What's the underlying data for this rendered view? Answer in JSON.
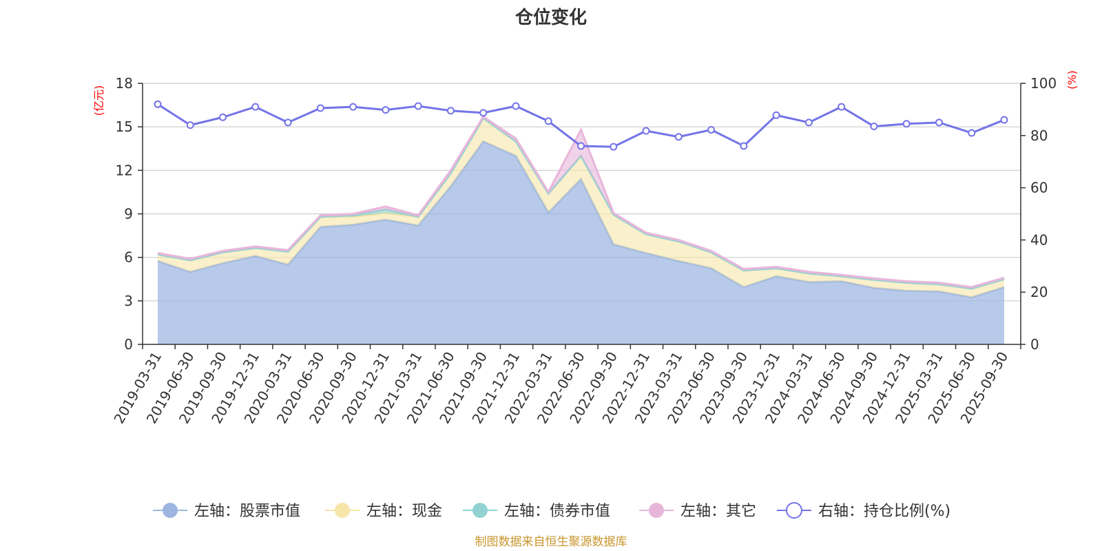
{
  "chart_data": {
    "type": "area",
    "title": "仓位变化",
    "left_axis_unit": "(亿元)",
    "right_axis_unit": "(%)",
    "left_ylim": [
      0,
      18
    ],
    "left_ticks": [
      0,
      3,
      6,
      9,
      12,
      15,
      18
    ],
    "right_ylim": [
      0,
      100
    ],
    "right_ticks": [
      0,
      20,
      40,
      60,
      80,
      100
    ],
    "categories": [
      "2019-03-31",
      "2019-06-30",
      "2019-09-30",
      "2019-12-31",
      "2020-03-31",
      "2020-06-30",
      "2020-09-30",
      "2020-12-31",
      "2021-03-31",
      "2021-06-30",
      "2021-09-30",
      "2021-12-31",
      "2022-03-31",
      "2022-06-30",
      "2022-09-30",
      "2022-12-31",
      "2023-03-31",
      "2023-06-30",
      "2023-09-30",
      "2023-12-31",
      "2024-03-31",
      "2024-06-30",
      "2024-09-30",
      "2024-12-31",
      "2025-03-31",
      "2025-06-30",
      "2025-09-30"
    ],
    "series": [
      {
        "name": "左轴：股票市值",
        "axis": "left",
        "type": "stacked-area",
        "color": "#9db6e1",
        "values": [
          5.75,
          5.0,
          5.6,
          6.1,
          5.5,
          8.1,
          8.25,
          8.6,
          8.2,
          10.9,
          14.0,
          13.0,
          9.1,
          11.4,
          6.9,
          6.3,
          5.75,
          5.25,
          3.95,
          4.7,
          4.3,
          4.35,
          3.9,
          3.7,
          3.65,
          3.25,
          3.95
        ]
      },
      {
        "name": "左轴：现金",
        "axis": "left",
        "type": "stacked-area",
        "color": "#f7e6a8",
        "values": [
          0.45,
          0.8,
          0.75,
          0.55,
          0.9,
          0.7,
          0.55,
          0.45,
          0.6,
          0.9,
          1.6,
          1.0,
          1.3,
          1.6,
          2.05,
          1.3,
          1.35,
          1.1,
          1.15,
          0.55,
          0.6,
          0.35,
          0.55,
          0.55,
          0.5,
          0.6,
          0.55
        ]
      },
      {
        "name": "左轴：债券市值",
        "axis": "left",
        "type": "stacked-area",
        "color": "#93d2d2",
        "values": [
          0,
          0,
          0,
          0,
          0,
          0,
          0.1,
          0.25,
          0,
          0,
          0,
          0,
          0,
          0,
          0,
          0,
          0,
          0,
          0,
          0,
          0,
          0,
          0,
          0,
          0,
          0,
          0
        ]
      },
      {
        "name": "左轴：其它",
        "axis": "left",
        "type": "stacked-area",
        "color": "#e8b6da",
        "values": [
          0.1,
          0.1,
          0.1,
          0.1,
          0.1,
          0.1,
          0.1,
          0.2,
          0.1,
          0.2,
          0.1,
          0.2,
          0.1,
          1.8,
          0.1,
          0.1,
          0.1,
          0.1,
          0.1,
          0.1,
          0.1,
          0.1,
          0.1,
          0.1,
          0.1,
          0.1,
          0.1
        ]
      },
      {
        "name": "右轴：持仓比例(%)",
        "axis": "right",
        "type": "line",
        "color": "#7373e8",
        "values": [
          92,
          84,
          87,
          91,
          85,
          90.5,
          91,
          89.8,
          91.3,
          89.5,
          88.7,
          91.3,
          85.5,
          76,
          75.7,
          81.8,
          79.5,
          82.2,
          76,
          87.8,
          85,
          91,
          83.5,
          84.5,
          85,
          81,
          86
        ]
      }
    ],
    "legend_position": "bottom",
    "grid": true
  },
  "source_note": "制图数据来自恒生聚源数据库"
}
